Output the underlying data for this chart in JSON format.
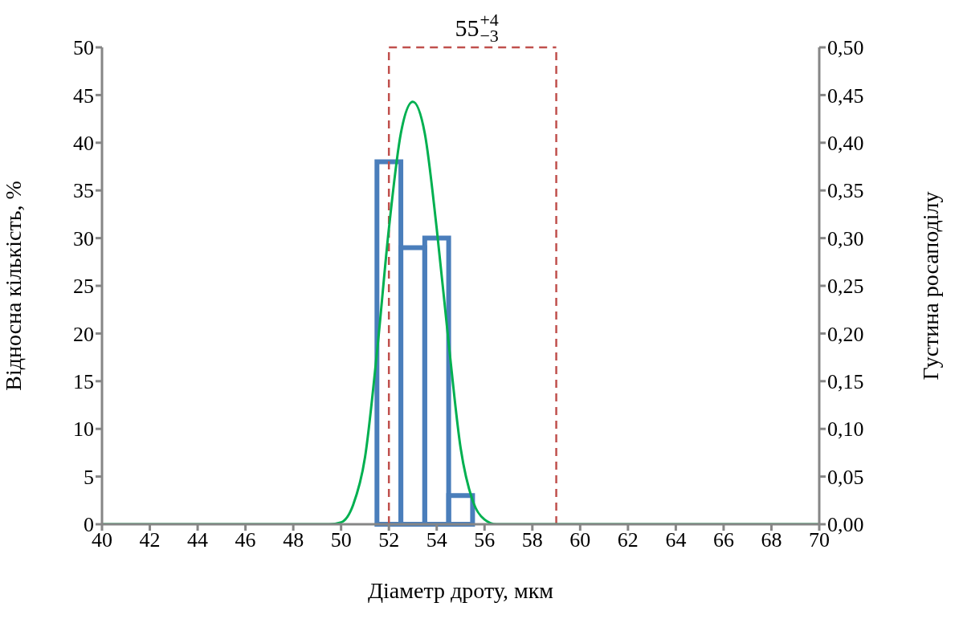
{
  "chart_data": {
    "type": "histogram",
    "xlabel": "Діаметр дроту, мкм",
    "ylabel": "Відносна кількість, %",
    "y2label": "Густина росаподілу",
    "annotations": [
      "55$^{+4}$$_{−3}$"
    ],
    "xlim": [
      40,
      70
    ],
    "xticks": [
      40,
      42,
      44,
      46,
      48,
      50,
      52,
      54,
      56,
      58,
      60,
      62,
      64,
      66,
      68,
      70
    ],
    "ylim": [
      0,
      50
    ],
    "yticks": [
      0,
      5,
      10,
      15,
      20,
      25,
      30,
      35,
      40,
      45,
      50
    ],
    "y2lim": [
      0,
      0.5
    ],
    "y2ticks": [
      {
        "value": 0,
        "label": "0,00"
      },
      {
        "value": 0.05,
        "label": "0,05"
      },
      {
        "value": 0.1,
        "label": "0,10"
      },
      {
        "value": 0.15,
        "label": "0,15"
      },
      {
        "value": 0.2,
        "label": "0,20"
      },
      {
        "value": 0.25,
        "label": "0,25"
      },
      {
        "value": 0.3,
        "label": "0,30"
      },
      {
        "value": 0.35,
        "label": "0,35"
      },
      {
        "value": 0.4,
        "label": "0,40"
      },
      {
        "value": 0.45,
        "label": "0,45"
      },
      {
        "value": 0.5,
        "label": "0,50"
      }
    ],
    "ref_lines": [
      {
        "axis": "x",
        "value": 52,
        "color": "#c0504d",
        "line_style": "dashed"
      },
      {
        "axis": "x",
        "value": 59,
        "color": "#c0504d",
        "line_style": "dashed"
      }
    ],
    "series": [
      {
        "color": "#4a7ebb",
        "bins": [
          51.5,
          52.5,
          53.5,
          54.5,
          55.5
        ],
        "values": [
          38,
          29,
          30,
          3
        ]
      },
      {
        "type": "line",
        "axis": "y2",
        "color": "#00b050",
        "x": [
          40,
          49.5,
          50,
          50.5,
          51,
          51.5,
          52,
          52.5,
          53,
          53.5,
          54,
          54.5,
          55,
          55.5,
          56,
          56.5,
          70
        ],
        "values": [
          0,
          0,
          0.002,
          0.02,
          0.07,
          0.18,
          0.31,
          0.41,
          0.443,
          0.41,
          0.31,
          0.19,
          0.08,
          0.025,
          0.005,
          0,
          0
        ]
      }
    ]
  }
}
